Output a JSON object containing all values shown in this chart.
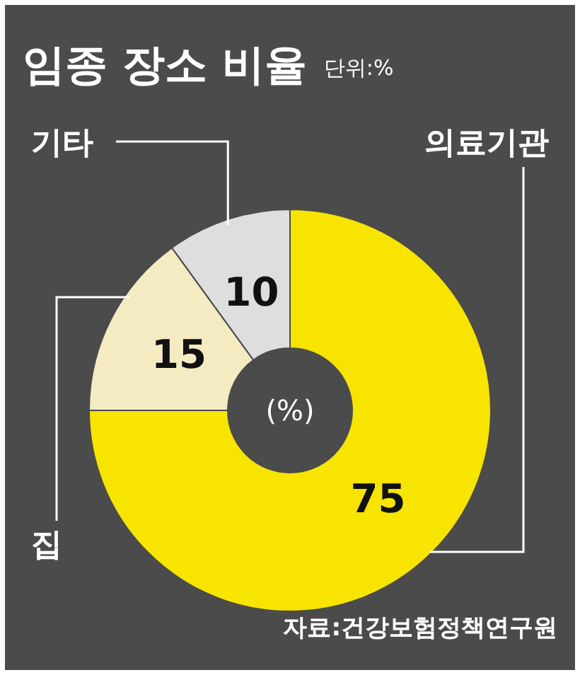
{
  "chart_data": {
    "type": "donut",
    "title": "임종 장소 비율",
    "subtitle": "단위:%",
    "categories": [
      "의료기관",
      "집",
      "기타"
    ],
    "values": [
      75,
      15,
      10
    ],
    "colors": [
      "#f7e400",
      "#f4ebc3",
      "#dedede"
    ],
    "data_labels": true,
    "annotations": [
      "(%)",
      "자료:건강보험정책연구원"
    ]
  }
}
